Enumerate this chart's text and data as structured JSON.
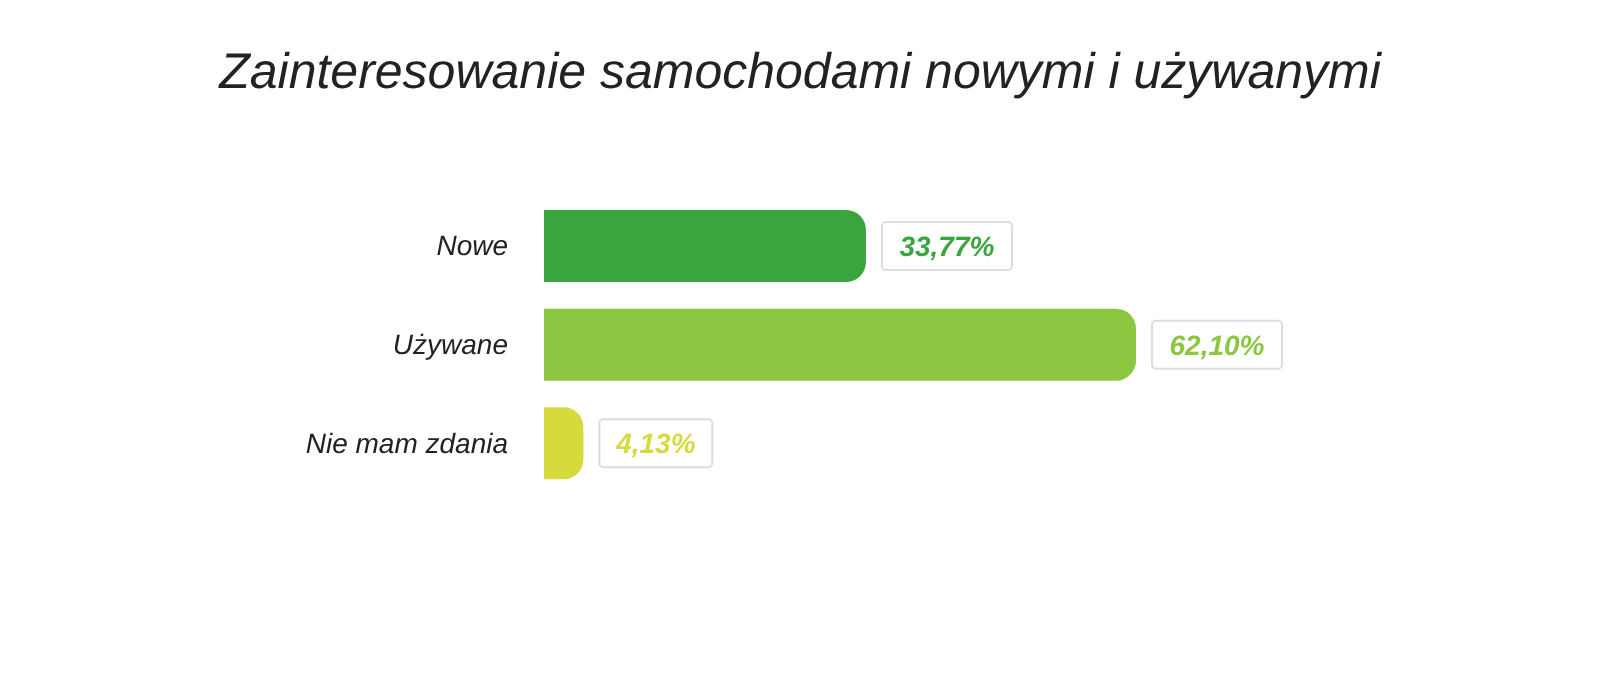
{
  "chart_data": {
    "type": "bar",
    "orientation": "horizontal",
    "title": "Zainteresowanie samochodami nowymi i używanymi",
    "categories": [
      "Nowe",
      "Używane",
      "Nie mam zdania"
    ],
    "values": [
      33.77,
      62.1,
      4.13
    ],
    "value_labels": [
      "33,77%",
      "62,10%",
      "4,13%"
    ],
    "colors": [
      "#3aa53e",
      "#8dc641",
      "#d6da3c"
    ]
  }
}
